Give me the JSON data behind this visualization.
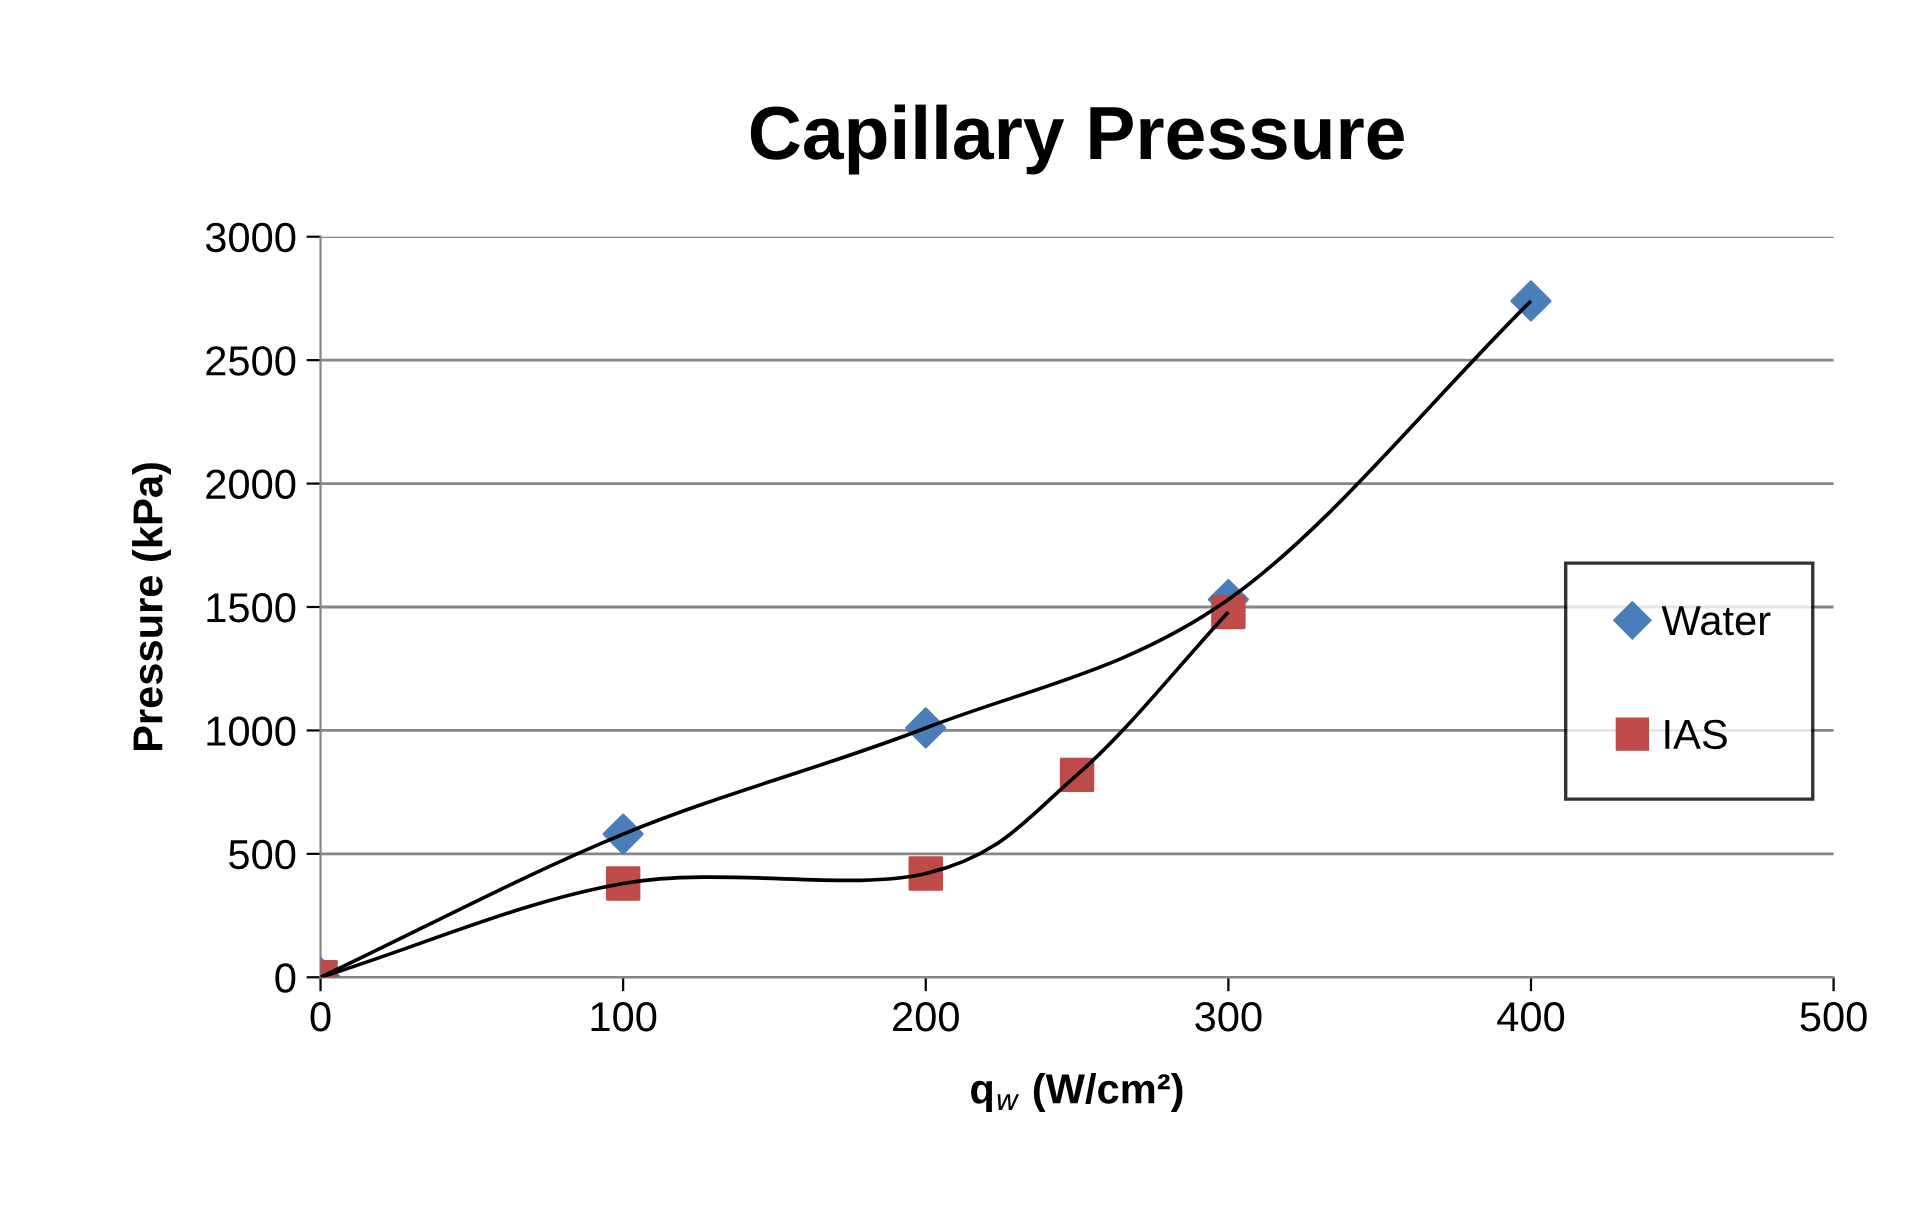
{
  "chart_data": {
    "type": "scatter",
    "title": "Capillary Pressure",
    "xlabel": "q$_{w}$ (W/cm²)",
    "ylabel": "Pressure (kPa)",
    "xlim": [
      0,
      500
    ],
    "xticks": [
      0,
      100,
      200,
      300,
      400,
      500
    ],
    "ylim": [
      0,
      3000
    ],
    "yticks": [
      0,
      500,
      1000,
      1500,
      2000,
      2500,
      3000
    ],
    "grid": "y",
    "legend": "right",
    "series": [
      {
        "type": "line",
        "color": "#000000",
        "marker": "none",
        "line_style": "solid",
        "x": [
          0,
          100,
          200,
          300,
          400
        ],
        "values": [
          0,
          580,
          1010,
          1530,
          2740
        ]
      },
      {
        "type": "line",
        "color": "#000000",
        "marker": "none",
        "line_style": "solid",
        "x": [
          0,
          100,
          200,
          250,
          300
        ],
        "values": [
          0,
          380,
          420,
          820,
          1480
        ]
      },
      {
        "name": "Water",
        "color": "#4a7ebb",
        "marker": "diamond",
        "x": [
          0,
          100,
          200,
          300,
          400
        ],
        "values": [
          0,
          580,
          1010,
          1530,
          2740
        ]
      },
      {
        "name": "IAS",
        "color": "#be4b48",
        "marker": "square",
        "x": [
          0,
          100,
          200,
          250,
          300
        ],
        "values": [
          0,
          380,
          420,
          820,
          1480
        ]
      }
    ]
  }
}
